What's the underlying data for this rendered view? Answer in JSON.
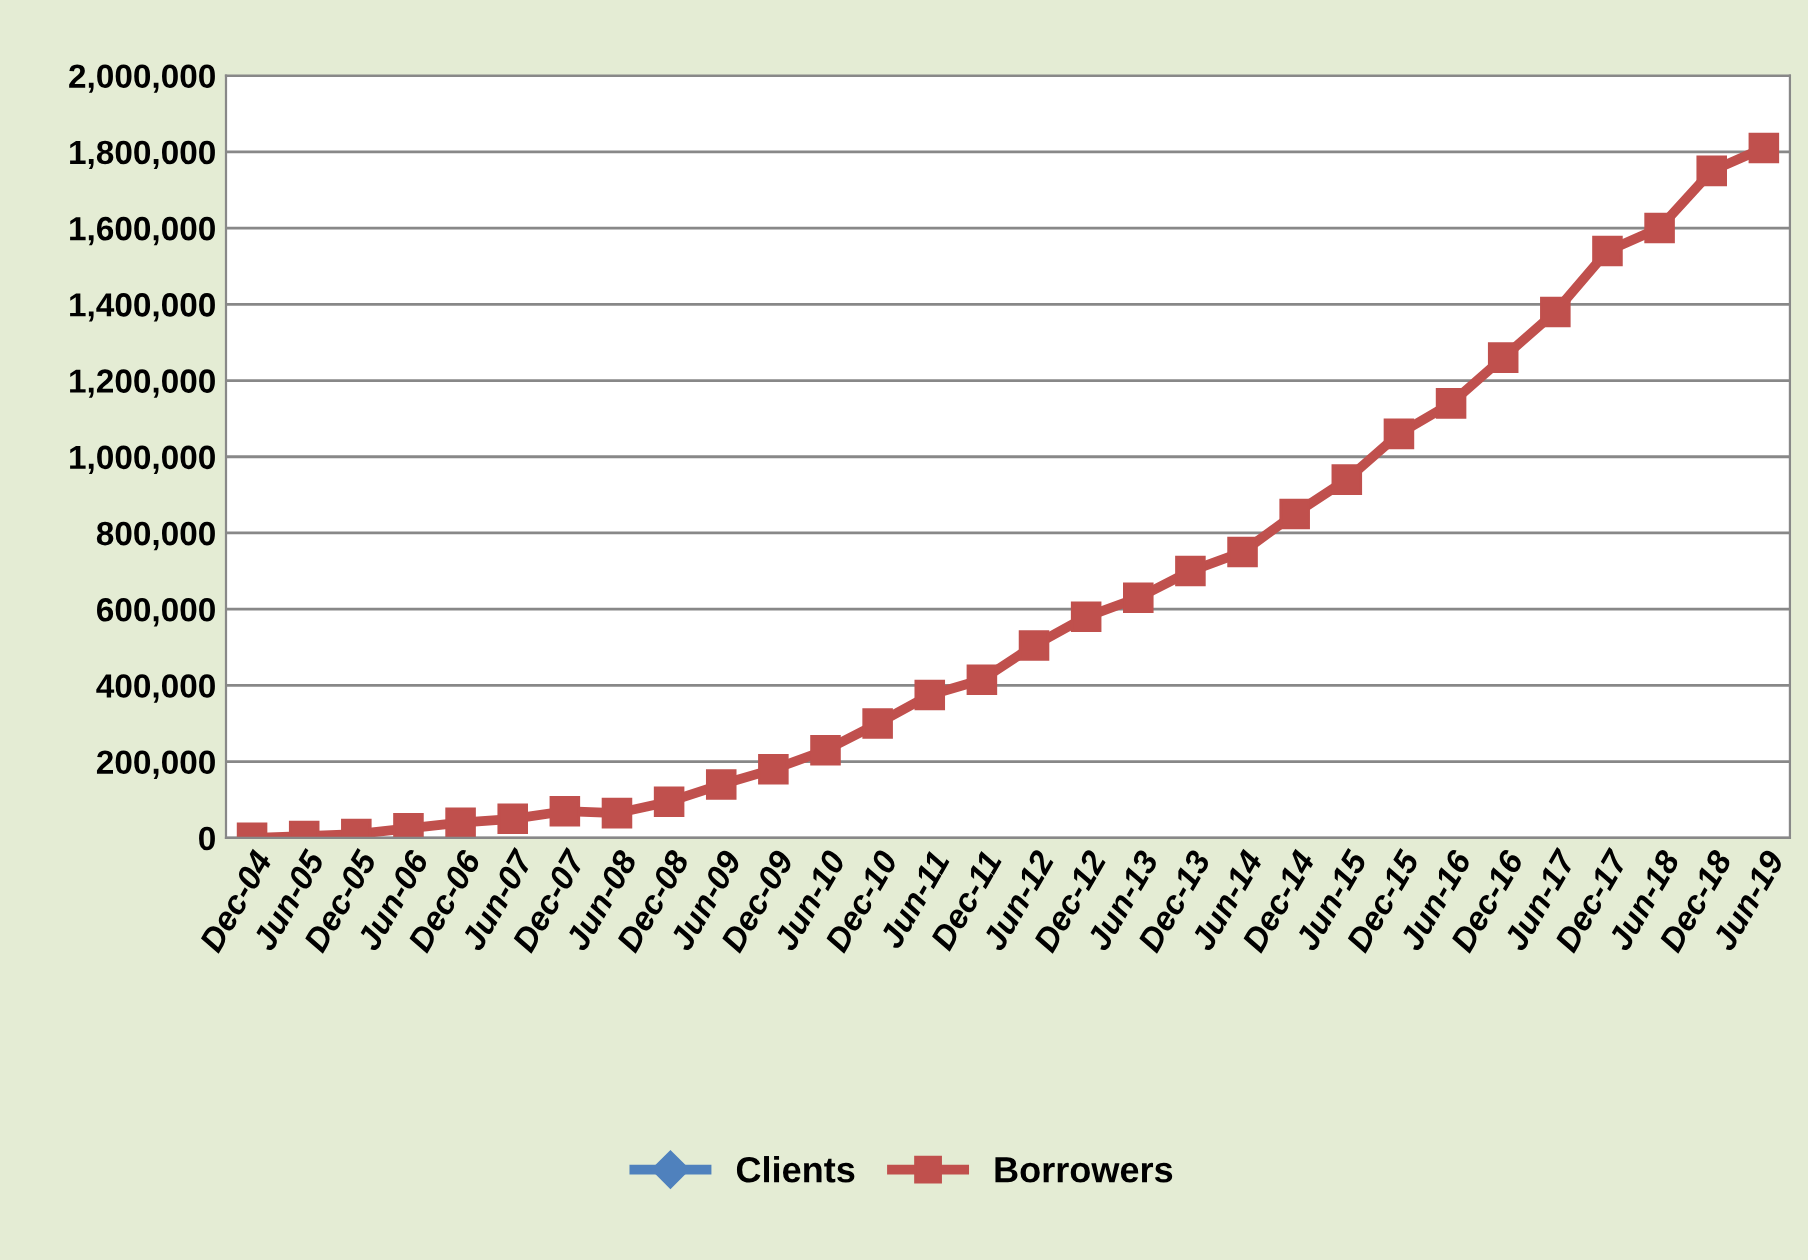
{
  "chart_data": {
    "type": "line",
    "categories": [
      "Dec-04",
      "Jun-05",
      "Dec-05",
      "Jun-06",
      "Dec-06",
      "Jun-07",
      "Dec-07",
      "Jun-08",
      "Dec-08",
      "Jun-09",
      "Dec-09",
      "Jun-10",
      "Dec-10",
      "Jun-11",
      "Dec-11",
      "Jun-12",
      "Dec-12",
      "Jun-13",
      "Dec-13",
      "Jun-14",
      "Dec-14",
      "Jun-15",
      "Dec-15",
      "Jun-16",
      "Dec-16",
      "Jun-17",
      "Dec-17",
      "Jun-18",
      "Dec-18",
      "Jun-19"
    ],
    "series": [
      {
        "name": "Clients",
        "color": "#4f81bd",
        "marker": "diamond",
        "values": [
          null,
          null,
          null,
          null,
          null,
          null,
          null,
          null,
          null,
          null,
          null,
          null,
          null,
          null,
          null,
          null,
          null,
          null,
          null,
          null,
          null,
          null,
          null,
          null,
          null,
          null,
          null,
          null,
          null,
          null
        ]
      },
      {
        "name": "Borrowers",
        "color": "#c0504d",
        "marker": "square",
        "values": [
          0,
          5000,
          10000,
          25000,
          40000,
          50000,
          70000,
          65000,
          95000,
          140000,
          180000,
          230000,
          300000,
          375000,
          415000,
          505000,
          580000,
          630000,
          700000,
          750000,
          850000,
          940000,
          1060000,
          1140000,
          1260000,
          1380000,
          1540000,
          1600000,
          1750000,
          1810000
        ]
      }
    ],
    "ylim": [
      0,
      2000000
    ],
    "yticks": [
      {
        "value": 0,
        "label": "0"
      },
      {
        "value": 200000,
        "label": "200,000"
      },
      {
        "value": 400000,
        "label": "400,000"
      },
      {
        "value": 600000,
        "label": "600,000"
      },
      {
        "value": 800000,
        "label": "800,000"
      },
      {
        "value": 1000000,
        "label": "1,000,000"
      },
      {
        "value": 1200000,
        "label": "1,200,000"
      },
      {
        "value": 1400000,
        "label": "1,400,000"
      },
      {
        "value": 1600000,
        "label": "1,600,000"
      },
      {
        "value": 1800000,
        "label": "1,800,000"
      },
      {
        "value": 2000000,
        "label": "2,000,000"
      }
    ],
    "grid": "y",
    "legend": "bottom",
    "line_style": "solid"
  }
}
